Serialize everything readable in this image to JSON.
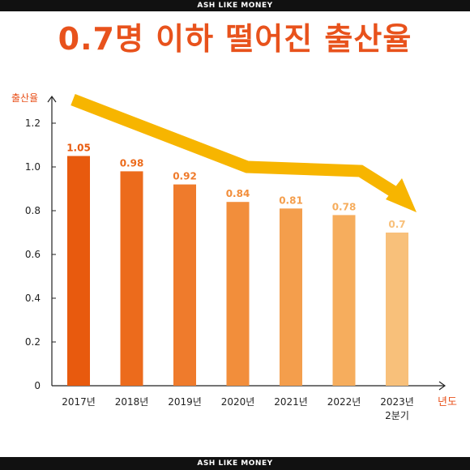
{
  "header": {
    "brand": "ASH LIKE MONEY"
  },
  "footer": {
    "brand": "ASH LIKE MONEY"
  },
  "page_title": "0.7명 이하 떨어진 출산율",
  "colors": {
    "title": "#e8521c",
    "arrow": "#f7b500",
    "bars": [
      "#e85a0e",
      "#ec6b1c",
      "#ef7b2c",
      "#f28e3b",
      "#f49e4c",
      "#f6ad5d",
      "#f8c07a"
    ]
  },
  "chart_data": {
    "type": "bar",
    "title": "",
    "ylabel": "출산율",
    "xlabel": "년도",
    "ylim": [
      0,
      1.3
    ],
    "yticks": [
      "0",
      "0.2",
      "0.4",
      "0.6",
      "0.8",
      "1.0",
      "1.2"
    ],
    "categories": [
      "2017년",
      "2018년",
      "2019년",
      "2020년",
      "2021년",
      "2022년",
      "2023년\n2분기"
    ],
    "values": [
      1.05,
      0.98,
      0.92,
      0.84,
      0.81,
      0.78,
      0.7
    ],
    "data_labels": [
      "1.05",
      "0.98",
      "0.92",
      "0.84",
      "0.81",
      "0.78",
      "0.7"
    ],
    "grid": false,
    "annotations": [
      {
        "kind": "trend-arrow",
        "direction": "down"
      }
    ]
  }
}
